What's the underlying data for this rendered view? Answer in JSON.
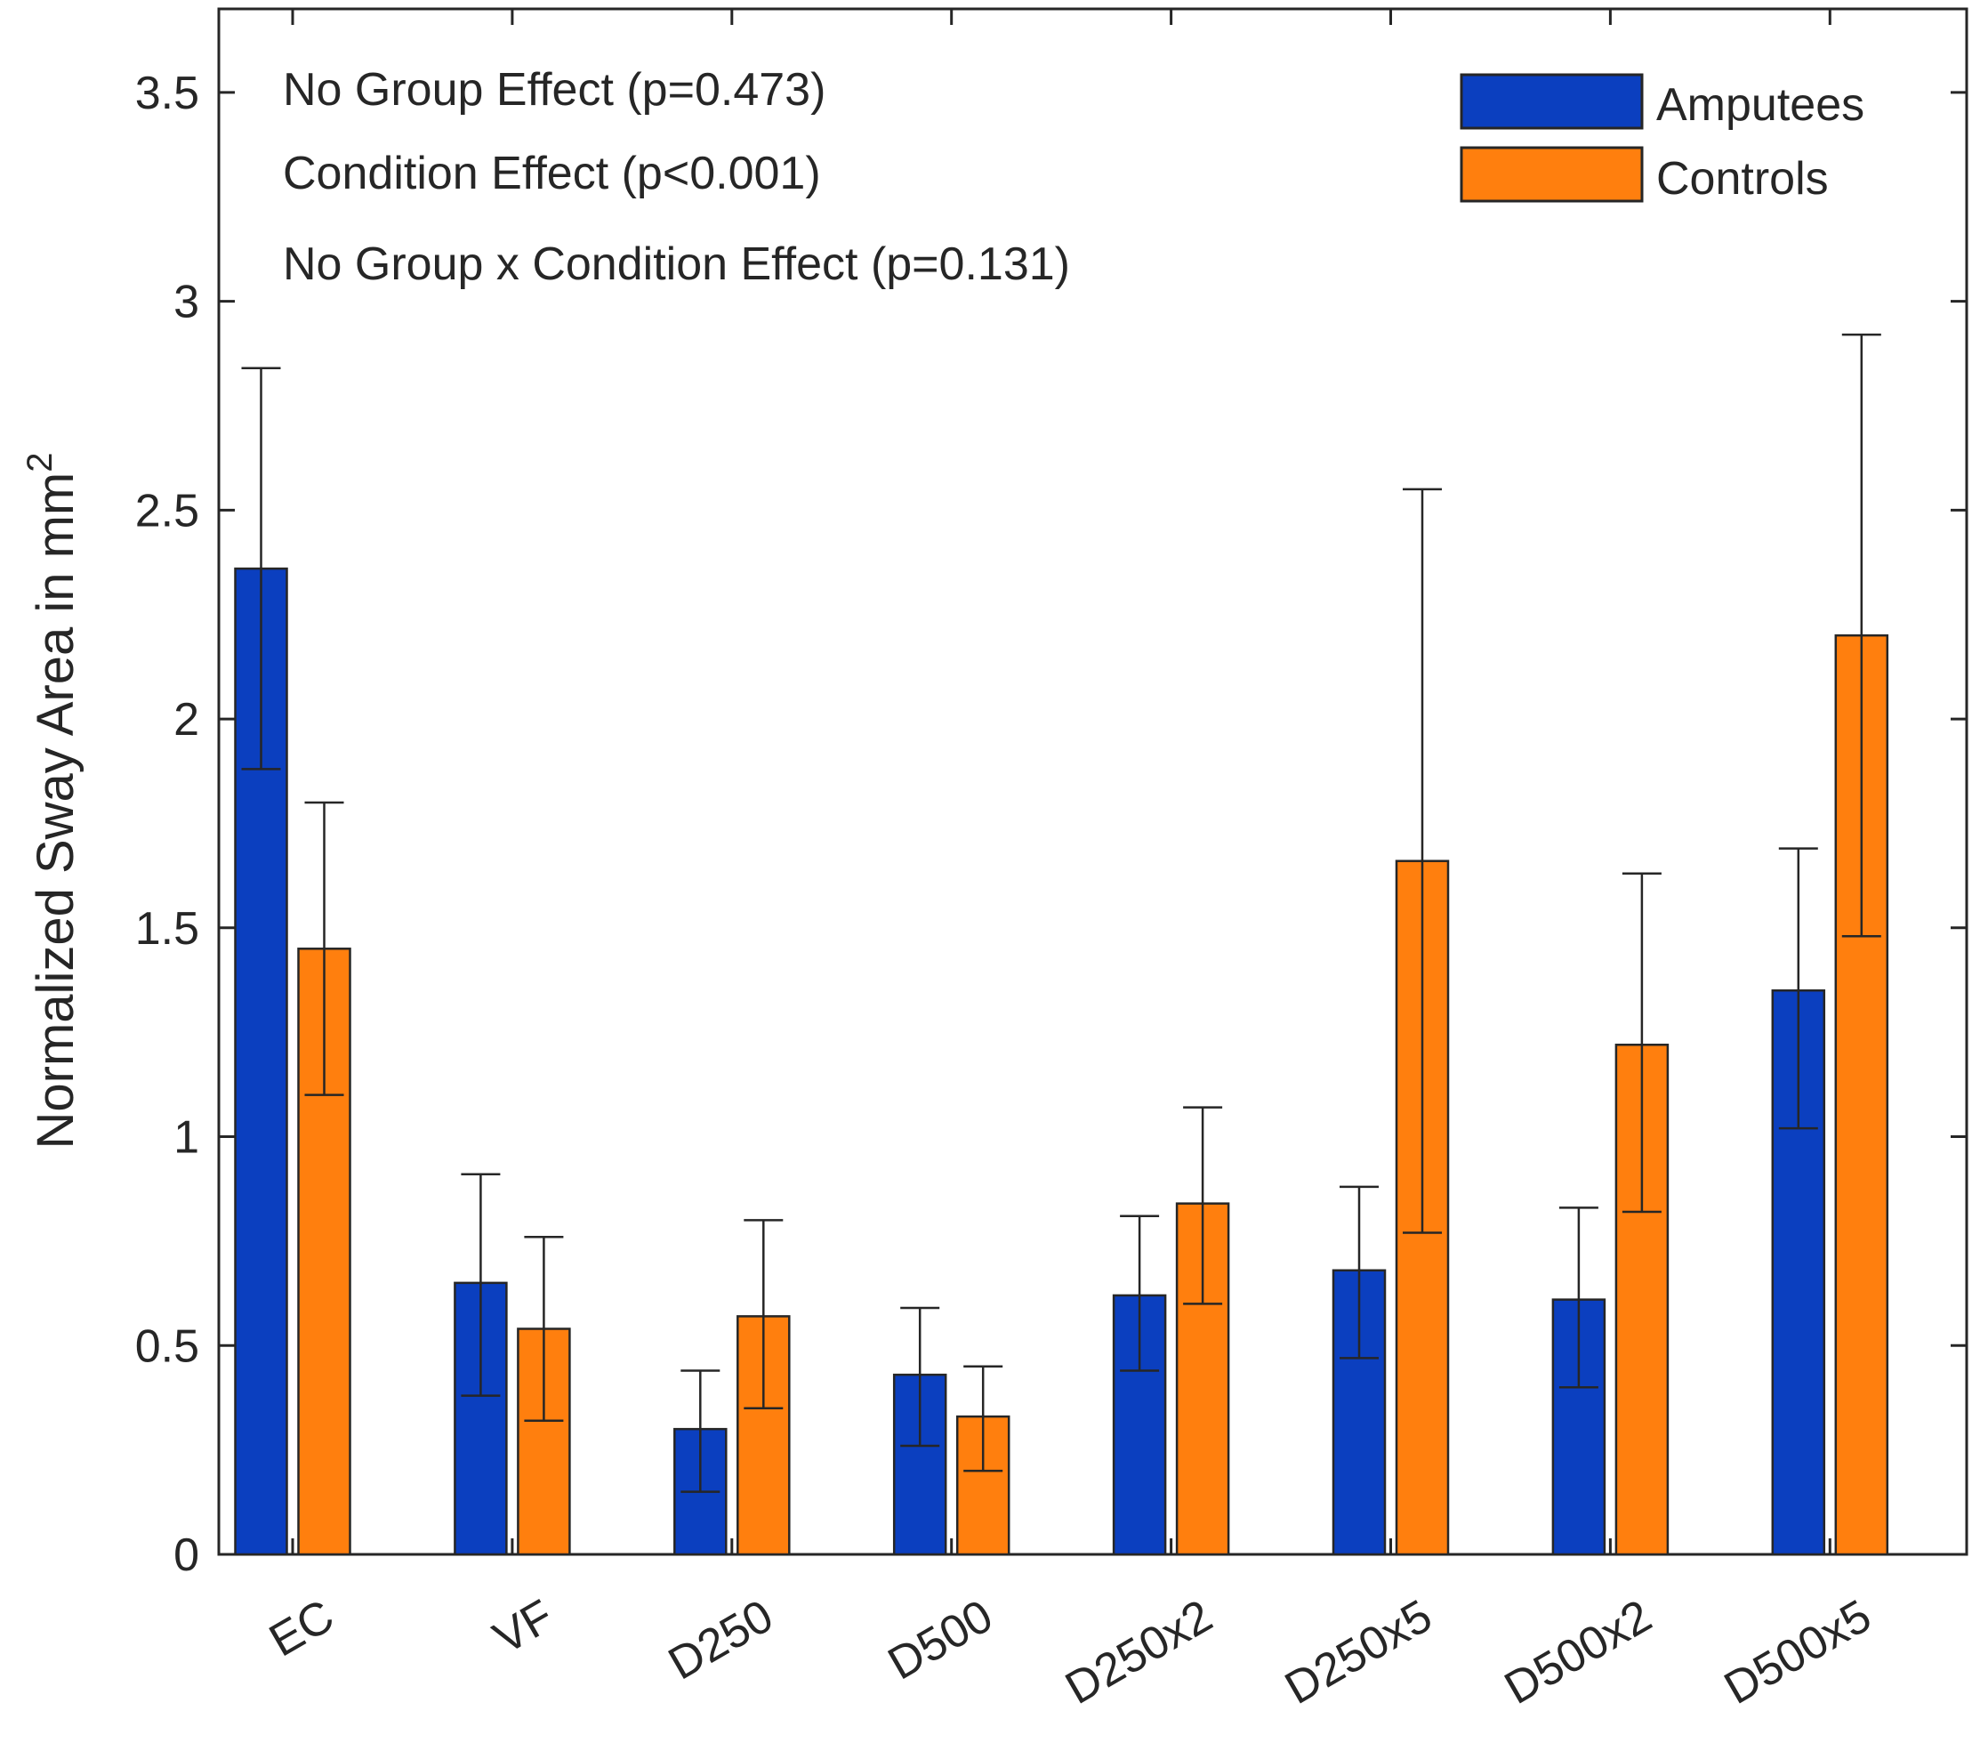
{
  "chart_data": {
    "type": "bar",
    "title": "",
    "xlabel": "",
    "ylabel": "Normalized Sway Area in mm",
    "ylabel_superscript": "2",
    "ylim": [
      0,
      3.7
    ],
    "yticks": [
      0,
      0.5,
      1,
      1.5,
      2,
      2.5,
      3,
      3.5
    ],
    "ytick_labels": [
      "0",
      "0.5",
      "1",
      "1.5",
      "2",
      "2.5",
      "3",
      "3.5"
    ],
    "grid": false,
    "legend_position": "top-right",
    "categories": [
      "EC",
      "VF",
      "D250",
      "D500",
      "D250x2",
      "D250x5",
      "D500x2",
      "D500x5"
    ],
    "series": [
      {
        "name": "Amputees",
        "color": "#0b3fbf",
        "values": [
          2.36,
          0.65,
          0.3,
          0.43,
          0.62,
          0.68,
          0.61,
          1.35
        ],
        "error_low": [
          1.88,
          0.38,
          0.15,
          0.26,
          0.44,
          0.47,
          0.4,
          1.02
        ],
        "error_high": [
          2.84,
          0.91,
          0.44,
          0.59,
          0.81,
          0.88,
          0.83,
          1.69
        ]
      },
      {
        "name": "Controls",
        "color": "#ff7f0e",
        "values": [
          1.45,
          0.54,
          0.57,
          0.33,
          0.84,
          1.66,
          1.22,
          2.2
        ],
        "error_low": [
          1.1,
          0.32,
          0.35,
          0.2,
          0.6,
          0.77,
          0.82,
          1.48
        ],
        "error_high": [
          1.8,
          0.76,
          0.8,
          0.45,
          1.07,
          2.55,
          1.63,
          2.92
        ]
      }
    ],
    "annotations": [
      "No Group Effect (p=0.473)",
      "Condition Effect (p<0.001)",
      "No Group x Condition Effect (p=0.131)"
    ]
  }
}
